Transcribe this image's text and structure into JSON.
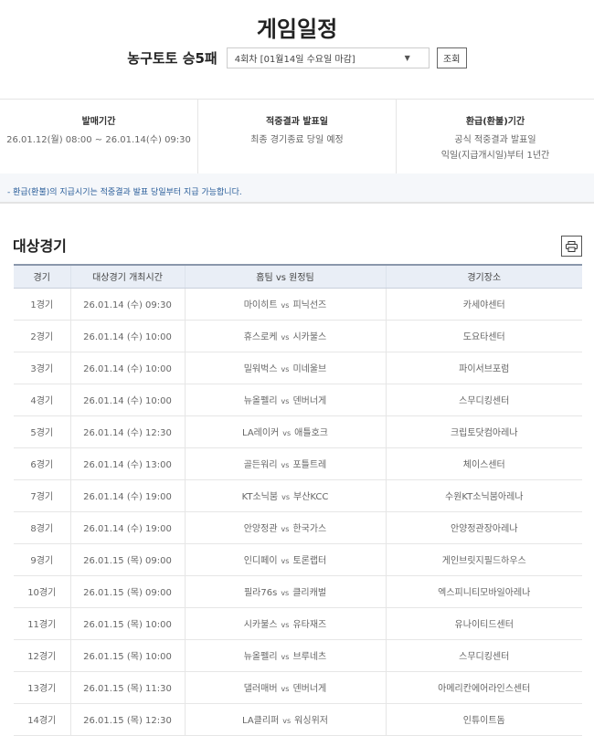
{
  "title": "게임일정",
  "game_name": "농구토토 승5패",
  "round_select": "4회차 [01월14일 수요일 마감]",
  "search_button": "조회",
  "info": [
    {
      "heading": "발매기간",
      "lines": [
        "26.01.12(월) 08:00 ~ 26.01.14(수) 09:30"
      ]
    },
    {
      "heading": "적중결과 발표일",
      "lines": [
        "최종 경기종료 당일 예정"
      ]
    },
    {
      "heading": "환급(환불)기간",
      "lines": [
        "공식 적중결과 발표일",
        "익일(지급개시일)부터 1년간"
      ]
    }
  ],
  "notice": "- 환급(환불)의 지급시기는 적중결과 발표 당일부터 지급 가능합니다.",
  "section_title": "대상경기",
  "print_icon": "printer-icon",
  "table": {
    "headers": [
      "경기",
      "대상경기 개최시간",
      "홈팀 vs 원정팀",
      "경기장소"
    ],
    "vs": "vs",
    "rows": [
      {
        "no": "1경기",
        "time": "26.01.14 (수) 09:30",
        "home": "마이히트",
        "away": "피닉선즈",
        "venue": "카세야센터"
      },
      {
        "no": "2경기",
        "time": "26.01.14 (수) 10:00",
        "home": "휴스로케",
        "away": "시카불스",
        "venue": "도요타센터"
      },
      {
        "no": "3경기",
        "time": "26.01.14 (수) 10:00",
        "home": "밀워벅스",
        "away": "미네울브",
        "venue": "파이서브포럼"
      },
      {
        "no": "4경기",
        "time": "26.01.14 (수) 10:00",
        "home": "뉴올펠리",
        "away": "덴버너게",
        "venue": "스무디킹센터"
      },
      {
        "no": "5경기",
        "time": "26.01.14 (수) 12:30",
        "home": "LA레이커",
        "away": "애틀호크",
        "venue": "크립토닷컴아레나"
      },
      {
        "no": "6경기",
        "time": "26.01.14 (수) 13:00",
        "home": "골든워리",
        "away": "포틀트레",
        "venue": "체이스센터"
      },
      {
        "no": "7경기",
        "time": "26.01.14 (수) 19:00",
        "home": "KT소닉붐",
        "away": "부산KCC",
        "venue": "수원KT소닉붐아레나"
      },
      {
        "no": "8경기",
        "time": "26.01.14 (수) 19:00",
        "home": "안양정관",
        "away": "한국가스",
        "venue": "안양정관장아레나"
      },
      {
        "no": "9경기",
        "time": "26.01.15 (목) 09:00",
        "home": "인디페이",
        "away": "토론랩터",
        "venue": "게인브릿지필드하우스"
      },
      {
        "no": "10경기",
        "time": "26.01.15 (목) 09:00",
        "home": "필라76s",
        "away": "클리캐벌",
        "venue": "엑스피니티모바일아레나"
      },
      {
        "no": "11경기",
        "time": "26.01.15 (목) 10:00",
        "home": "시카불스",
        "away": "유타재즈",
        "venue": "유나이티드센터"
      },
      {
        "no": "12경기",
        "time": "26.01.15 (목) 10:00",
        "home": "뉴올펠리",
        "away": "브루네츠",
        "venue": "스무디킹센터"
      },
      {
        "no": "13경기",
        "time": "26.01.15 (목) 11:30",
        "home": "댈러매버",
        "away": "덴버너게",
        "venue": "아메리칸에어라인스센터"
      },
      {
        "no": "14경기",
        "time": "26.01.15 (목) 12:30",
        "home": "LA클리퍼",
        "away": "워싱위저",
        "venue": "인튜이트돔"
      }
    ]
  }
}
